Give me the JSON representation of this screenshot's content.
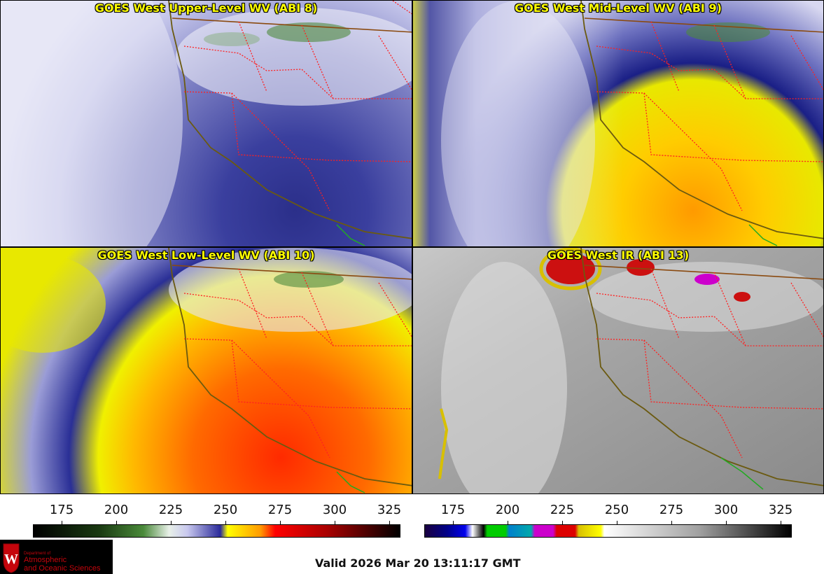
{
  "panels": [
    {
      "title": "GOES West Upper-Level WV (ABI 8)"
    },
    {
      "title": "GOES West Mid-Level WV (ABI 9)"
    },
    {
      "title": "GOES West Low-Level WV (ABI 10)"
    },
    {
      "title": "GOES West IR (ABI 13)"
    }
  ],
  "colorbars": {
    "wv_ticks": [
      "175",
      "200",
      "225",
      "250",
      "275",
      "300",
      "325"
    ],
    "ir_ticks": [
      "175",
      "200",
      "225",
      "250",
      "275",
      "300",
      "325"
    ]
  },
  "logo": {
    "line1": "Department of",
    "line2": "Atmospheric",
    "line3": "and Oceanic Sciences"
  },
  "valid_time": "Valid 2026 Mar 20 13:11:17 GMT",
  "colors": {
    "title_yellow": "#ffff00",
    "border_red": "#ff2020",
    "coast": "#6b5a10",
    "wisc_red": "#c5050c"
  }
}
